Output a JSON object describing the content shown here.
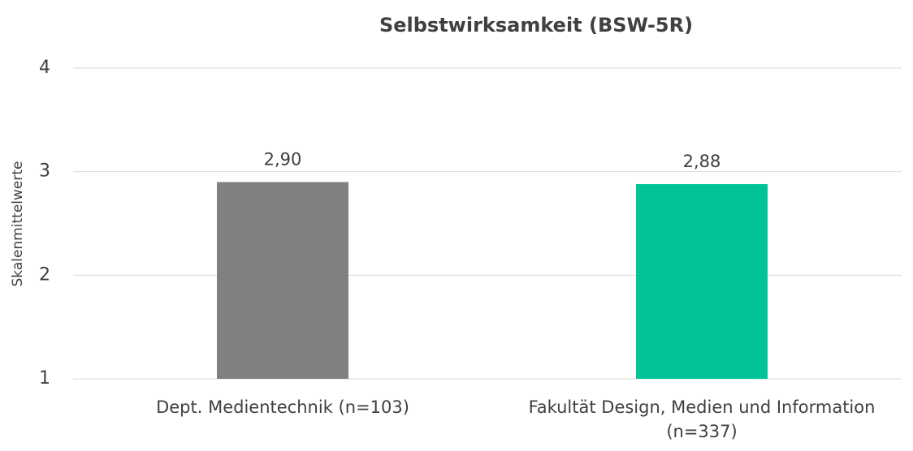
{
  "chart_data": {
    "type": "bar",
    "title": "Selbstwirksamkeit (BSW-5R)",
    "y_label": "Skalenmittelwerte",
    "categories": [
      "Dept. Medientechnik (n=103)",
      "Fakultät Design, Medien und Information (n=337)"
    ],
    "values": [
      2.9,
      2.88
    ],
    "value_labels": [
      "2,90",
      "2,88"
    ],
    "colors": [
      "#808080",
      "#00c495"
    ],
    "ylim": [
      1,
      4
    ],
    "yticks": [
      1,
      2,
      3,
      4
    ],
    "grid": true
  }
}
